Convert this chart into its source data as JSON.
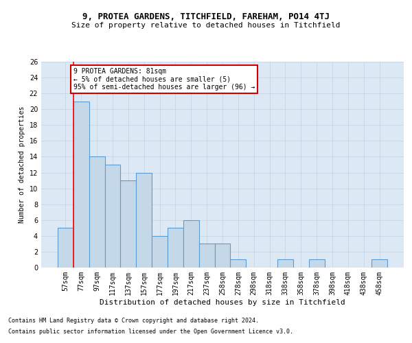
{
  "title1": "9, PROTEA GARDENS, TITCHFIELD, FAREHAM, PO14 4TJ",
  "title2": "Size of property relative to detached houses in Titchfield",
  "xlabel": "Distribution of detached houses by size in Titchfield",
  "ylabel": "Number of detached properties",
  "footer1": "Contains HM Land Registry data © Crown copyright and database right 2024.",
  "footer2": "Contains public sector information licensed under the Open Government Licence v3.0.",
  "bins": [
    "57sqm",
    "77sqm",
    "97sqm",
    "117sqm",
    "137sqm",
    "157sqm",
    "177sqm",
    "197sqm",
    "217sqm",
    "237sqm",
    "258sqm",
    "278sqm",
    "298sqm",
    "318sqm",
    "338sqm",
    "358sqm",
    "378sqm",
    "398sqm",
    "418sqm",
    "438sqm",
    "458sqm"
  ],
  "values": [
    5,
    21,
    14,
    13,
    11,
    12,
    4,
    5,
    6,
    3,
    3,
    1,
    0,
    0,
    1,
    0,
    1,
    0,
    0,
    0,
    1
  ],
  "bar_color": "#c5d8e8",
  "bar_edge_color": "#5b9bd5",
  "grid_color": "#c8d8e8",
  "bg_color": "#dce9f5",
  "annotation_box_color": "#ffffff",
  "annotation_box_edge": "#cc0000",
  "annotation_text_line1": "9 PROTEA GARDENS: 81sqm",
  "annotation_text_line2": "← 5% of detached houses are smaller (5)",
  "annotation_text_line3": "95% of semi-detached houses are larger (96) →",
  "red_line_x": 1,
  "ylim": [
    0,
    26
  ],
  "yticks": [
    0,
    2,
    4,
    6,
    8,
    10,
    12,
    14,
    16,
    18,
    20,
    22,
    24,
    26
  ],
  "title1_fontsize": 9,
  "title2_fontsize": 8,
  "xlabel_fontsize": 8,
  "ylabel_fontsize": 7,
  "tick_fontsize": 7,
  "ann_fontsize": 7,
  "footer_fontsize": 6
}
